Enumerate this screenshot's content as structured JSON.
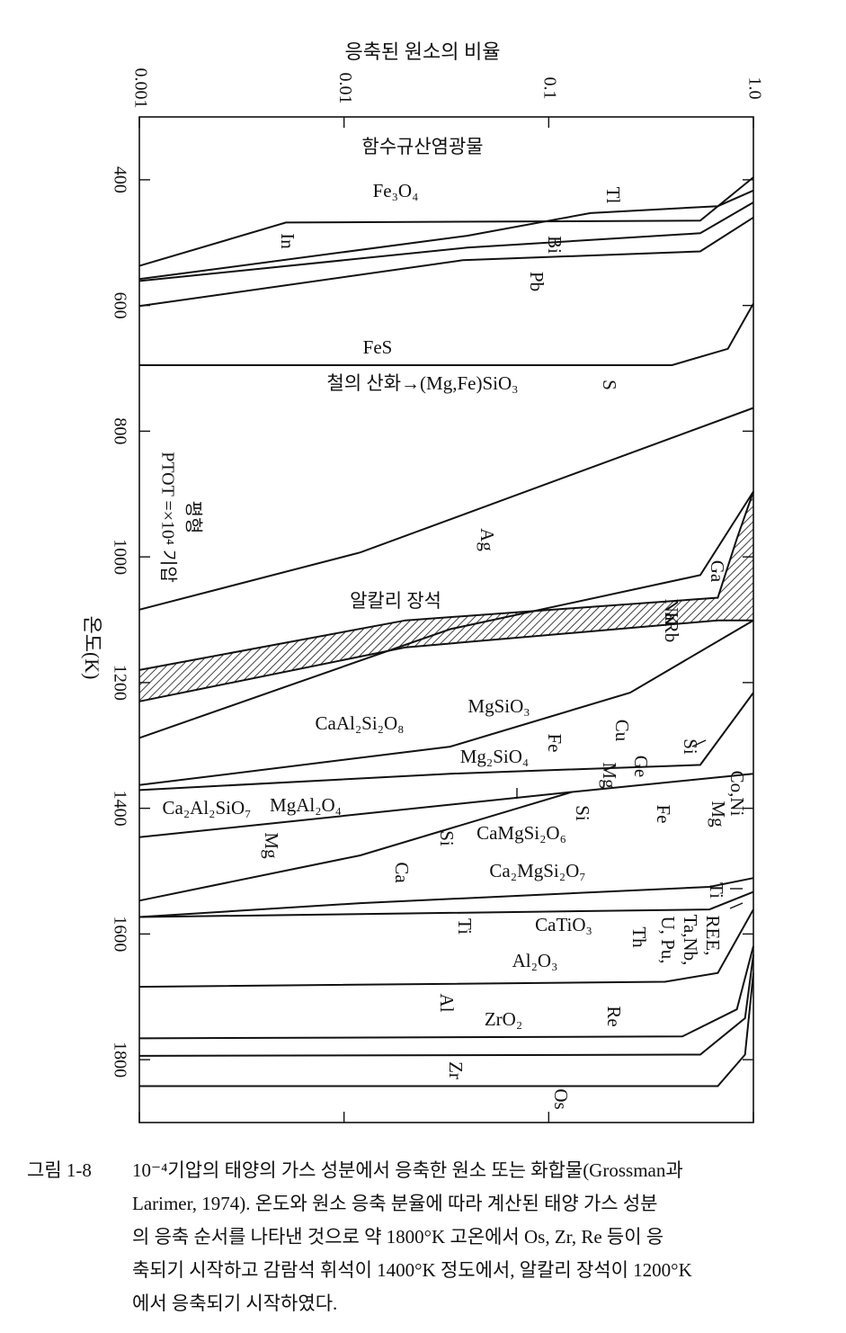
{
  "chart_data": {
    "type": "line",
    "x_label": "응축된 원소의 비율",
    "y_label": "온도(K)",
    "condition": [
      "평형",
      "PTOT =×10⁴ 기압"
    ],
    "xscale": "log",
    "xlim": [
      0.001,
      1
    ],
    "xticks": [
      0.001,
      0.01,
      0.1,
      {
        "value": 1,
        "label": "1.0"
      }
    ],
    "ylim": [
      300,
      1900
    ],
    "y_inverted": true,
    "yticks": [
      400,
      600,
      800,
      1000,
      1200,
      1400,
      1600,
      1800
    ],
    "grid": false,
    "color": "#111111",
    "series": [
      {
        "x": [
          0.001,
          0.0052,
          0.55,
          1
        ],
        "values": [
          537,
          468,
          465,
          396
        ]
      },
      {
        "x": [
          0.001,
          0.04,
          0.16,
          0.67,
          1
        ],
        "values": [
          558,
          489,
          453,
          442,
          417
        ]
      },
      {
        "x": [
          0.001,
          0.04,
          0.55,
          1
        ],
        "values": [
          561,
          508,
          485,
          436
        ]
      },
      {
        "x": [
          0.001,
          0.038,
          0.55,
          1
        ],
        "values": [
          601,
          528,
          514,
          460
        ]
      },
      {
        "x": [
          0.001,
          0.4,
          0.75,
          1
        ],
        "values": [
          695,
          695,
          669,
          597
        ]
      },
      {
        "x": [
          0.001,
          0.012,
          1
        ],
        "values": [
          1084,
          993,
          763
        ]
      },
      {
        "x": [
          0.001,
          0.02,
          0.67,
          0.83,
          1
        ],
        "values": [
          1180,
          1101,
          1065,
          971,
          896
        ]
      },
      {
        "x": [
          0.001,
          0.02,
          0.67,
          1
        ],
        "values": [
          1230,
          1144,
          1101,
          1101
        ]
      },
      {
        "x": [
          0.001,
          0.033,
          0.55,
          1
        ],
        "values": [
          1288,
          1115,
          1029,
          896
        ]
      },
      {
        "x": [
          0.001,
          0.033,
          0.25,
          1
        ],
        "values": [
          1363,
          1302,
          1216,
          1101
        ]
      },
      {
        "x": [
          0.001,
          0.033,
          0.55,
          1
        ],
        "values": [
          1371,
          1345,
          1331,
          1216
        ]
      },
      {
        "x": [
          0.001,
          0.13,
          1
        ],
        "values": [
          1446,
          1374,
          1345
        ]
      },
      {
        "x": [
          0.001,
          0.012,
          0.13
        ],
        "values": [
          1547,
          1475,
          1374
        ]
      },
      {
        "x": [
          0.001,
          0.012,
          0.61,
          1
        ],
        "values": [
          1573,
          1551,
          1525,
          1511
        ]
      },
      {
        "x": [
          0.001,
          0.61,
          1
        ],
        "values": [
          1573,
          1561,
          1533
        ]
      },
      {
        "x": [
          0.001,
          0.37,
          0.67,
          1
        ],
        "values": [
          1684,
          1676,
          1662,
          1561
        ]
      },
      {
        "x": [
          0.001,
          0.45,
          0.83,
          1
        ],
        "values": [
          1766,
          1763,
          1720,
          1619
        ]
      },
      {
        "x": [
          0.001,
          0.55,
          0.91,
          1
        ],
        "values": [
          1794,
          1792,
          1734,
          1633
        ]
      },
      {
        "x": [
          0.001,
          0.67,
          0.91,
          1
        ],
        "values": [
          1842,
          1842,
          1792,
          1662
        ]
      }
    ],
    "annotations": [
      "함수규산염광물",
      "Fe₃O₄",
      "Tl",
      "In",
      "Bi",
      "Pb",
      "FeS",
      "철의 산화→(Mg,Fe)SiO₃",
      "S",
      "Ag",
      "Ga",
      "알칼리 장석",
      "Na",
      "K",
      "Rb",
      "MgSiO₃",
      "CaAl₂Si₂O₈",
      "Cu",
      "Fe",
      "Mg₂SiO₄",
      "Si",
      "Ge",
      "Mg",
      "Co,Ni",
      "Ca₂Al₂SiO₇",
      "MgAl₂O₄",
      "Si",
      "Fe",
      "Mg",
      "Mg",
      "Si",
      "CaMgSi₂O₆",
      "Ca",
      "Ca₂MgSi₂O₇",
      "Ti",
      "Ti",
      "CaTiO₃",
      "REE,",
      "Ta,Nb,",
      "U, Pu,",
      "Th",
      "Al₂O₃",
      "Al",
      "Re",
      "ZrO₂",
      "Zr",
      "Os"
    ]
  },
  "caption": {
    "label": "그림 1-8",
    "lines": [
      "10⁻⁴기압의 태양의 가스 성분에서 응축한 원소 또는 화합물(Grossman과",
      "Larimer, 1974). 온도와 원소 응축 분율에 따라 계산된 태양 가스 성분",
      "의 응축 순서를 나타낸 것으로 약 1800°K 고온에서 Os, Zr, Re 등이 응",
      "축되기 시작하고 감람석 휘석이 1400°K 정도에서, 알칼리 장석이 1200°K",
      "에서 응축되기 시작하였다."
    ]
  }
}
